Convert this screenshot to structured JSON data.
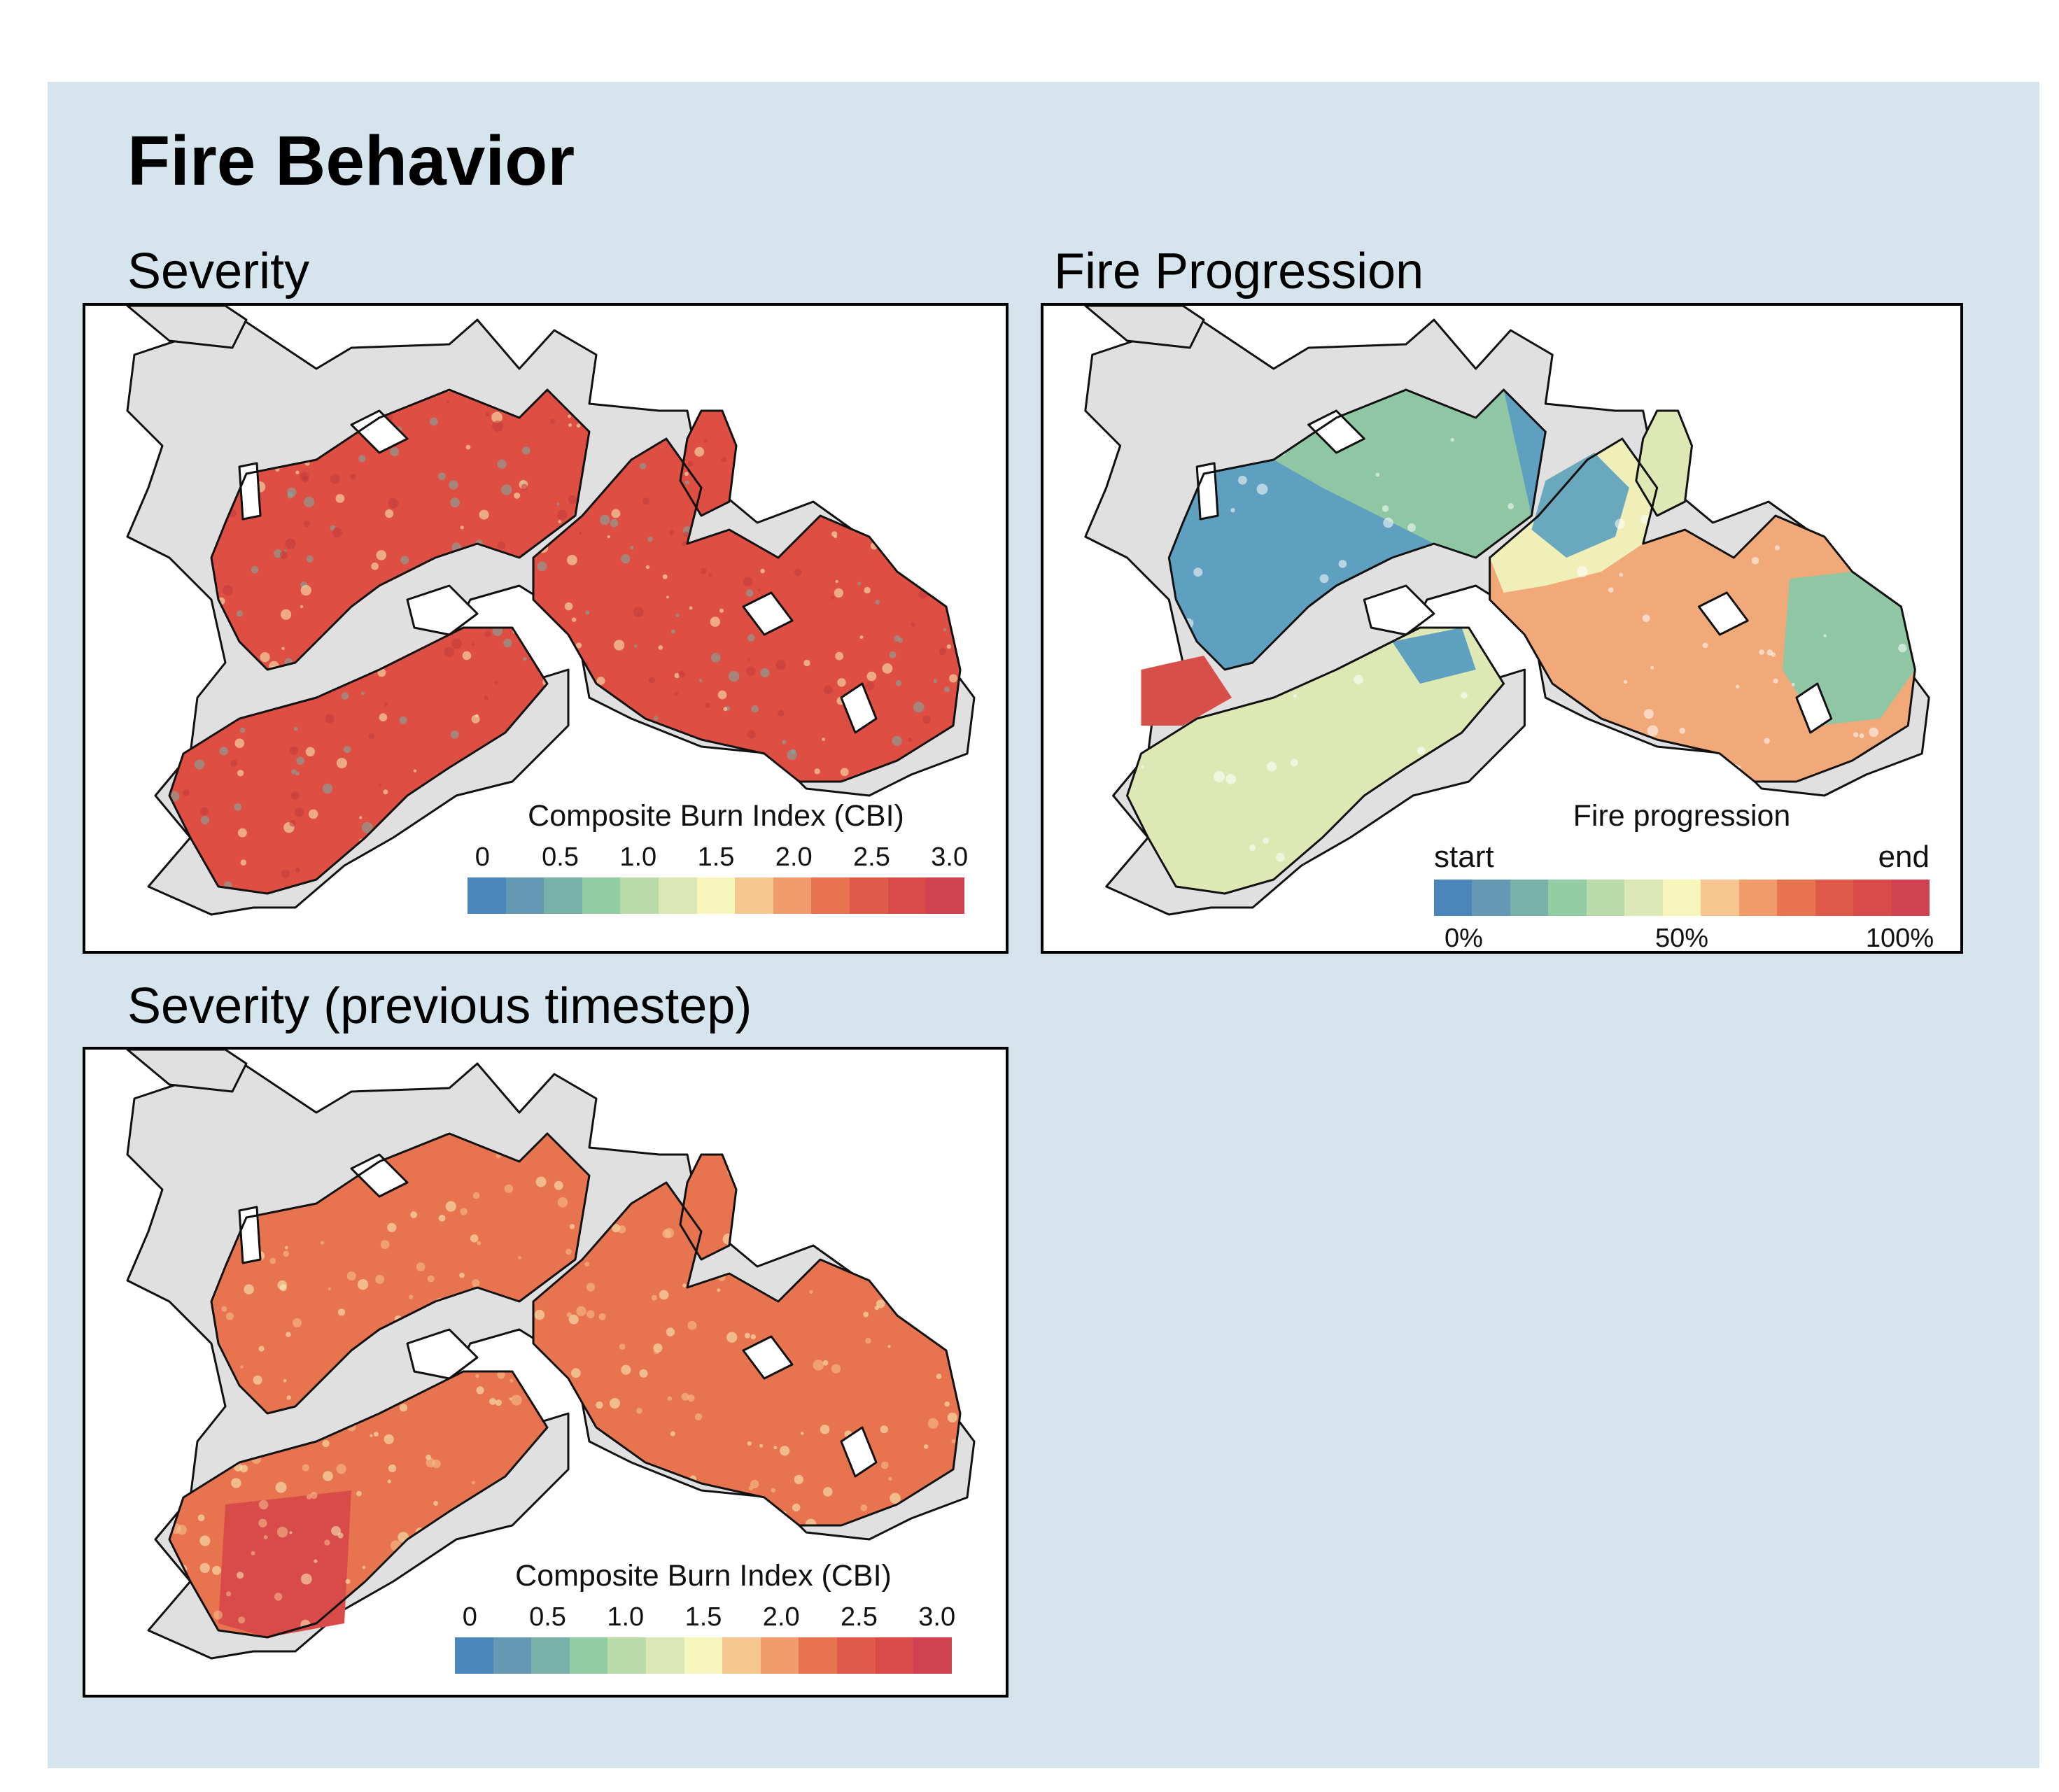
{
  "page": {
    "title": "Fire Behavior",
    "background": "#d6e4ed"
  },
  "panels": {
    "severity": {
      "title": "Severity",
      "legend": {
        "title": "Composite Burn Index (CBI)",
        "ticks": [
          "0",
          "0.5",
          "1.0",
          "1.5",
          "2.0",
          "2.5",
          "3.0"
        ],
        "range": [
          0,
          3.0
        ]
      }
    },
    "progression": {
      "title": "Fire Progression",
      "legend": {
        "title": "Fire progression",
        "start_label": "start",
        "end_label": "end",
        "ticks": [
          "0%",
          "50%",
          "100%"
        ],
        "range": [
          0,
          100
        ]
      }
    },
    "severity_prev": {
      "title": "Severity (previous timestep)",
      "legend": {
        "title": "Composite Burn Index (CBI)",
        "ticks": [
          "0",
          "0.5",
          "1.0",
          "1.5",
          "2.0",
          "2.5",
          "3.0"
        ],
        "range": [
          0,
          3.0
        ]
      }
    }
  },
  "colors": {
    "colormap": [
      "#4a86ba",
      "#6598b3",
      "#78b1a8",
      "#92cda4",
      "#b9dcaa",
      "#dbe8b5",
      "#f7f6bd",
      "#f6c590",
      "#f29c6b",
      "#e8734f",
      "#df5a4a",
      "#d94b49",
      "#d04252"
    ],
    "outside_area": "#e0e0e0",
    "boundary": "#111111",
    "severity_main": "#df4e42",
    "severity_prev_main": "#e8734f",
    "progression_early": "#5f9fbf",
    "progression_mid": "#dde8b4",
    "progression_late": "#f1a97a"
  }
}
